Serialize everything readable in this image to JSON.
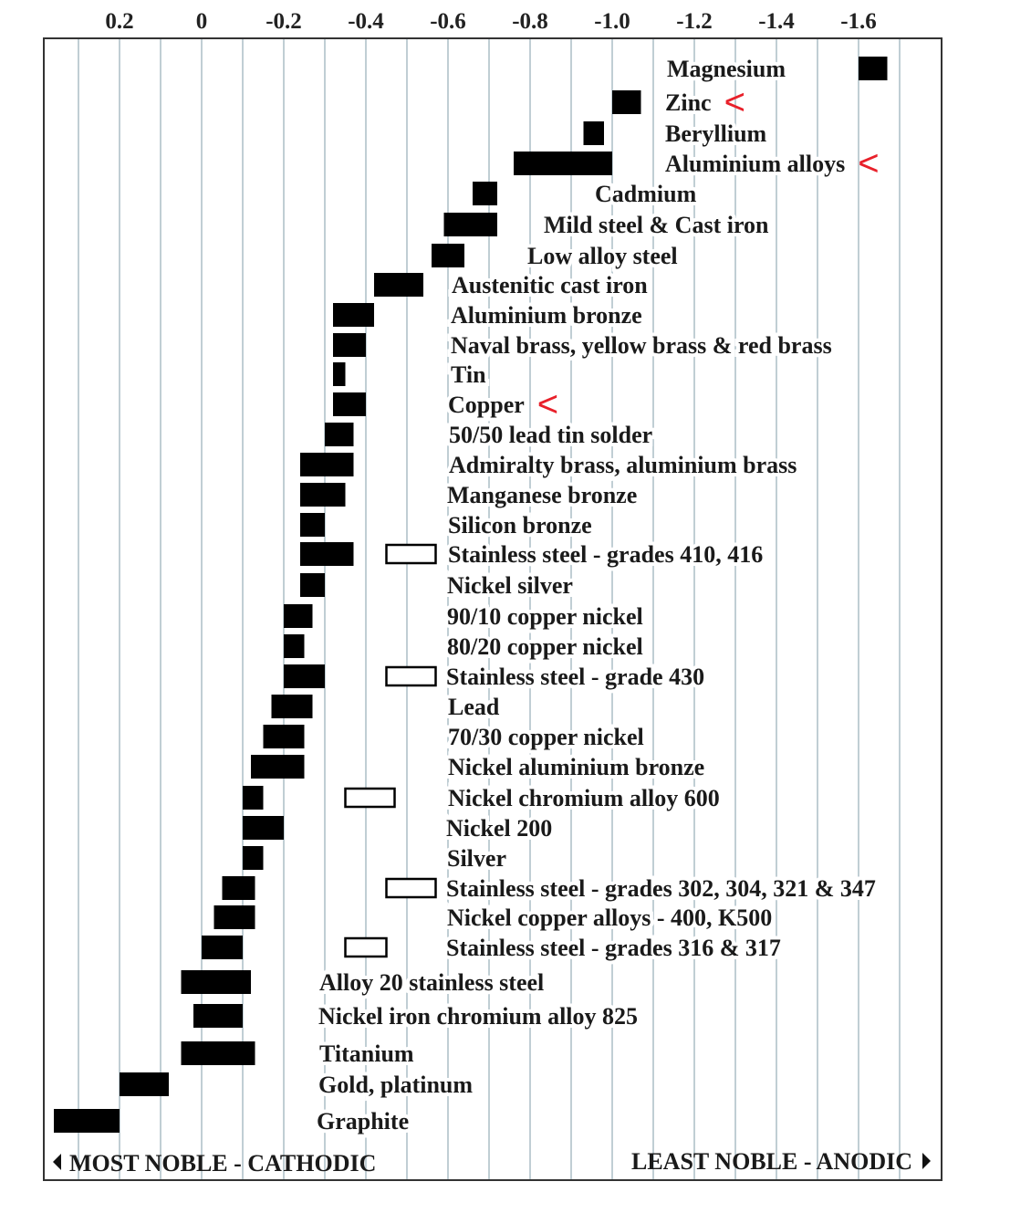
{
  "chart_data": {
    "type": "bar",
    "subtype": "floating-range",
    "x_axis": {
      "position": "top",
      "ticks": [
        "0.2",
        "0",
        "-0.2",
        "-0.4",
        "-0.6",
        "-0.8",
        "-1.0",
        "-1.2",
        "-1.4",
        "-1.6"
      ],
      "range": [
        0.38,
        -1.78
      ],
      "gridlines_every": 0.1,
      "grid": true,
      "grid_color": "#9fb3bd"
    },
    "footer": {
      "left": "MOST NOBLE - CATHODIC",
      "right": "LEAST NOBLE - ANODIC"
    },
    "colors": {
      "filled_bar": "#000000",
      "open_bar": "#ffffff",
      "marker": "#e8202a"
    },
    "marker_symbol": "<",
    "series": [
      {
        "name": "Magnesium",
        "range": [
          -1.6,
          -1.67
        ],
        "marked": false
      },
      {
        "name": "Zinc",
        "range": [
          -1.0,
          -1.07
        ],
        "marked": true
      },
      {
        "name": "Beryllium",
        "range": [
          -0.93,
          -0.98
        ],
        "marked": false
      },
      {
        "name": "Aluminium alloys",
        "range": [
          -0.76,
          -1.0
        ],
        "marked": true
      },
      {
        "name": "Cadmium",
        "range": [
          -0.66,
          -0.72
        ],
        "marked": false
      },
      {
        "name": "Mild steel & Cast iron",
        "range": [
          -0.59,
          -0.72
        ],
        "marked": false
      },
      {
        "name": "Low alloy steel",
        "range": [
          -0.56,
          -0.64
        ],
        "marked": false
      },
      {
        "name": "Austenitic cast iron",
        "range": [
          -0.42,
          -0.54
        ],
        "marked": false
      },
      {
        "name": "Aluminium bronze",
        "range": [
          -0.32,
          -0.42
        ],
        "marked": false
      },
      {
        "name": "Naval brass, yellow brass & red brass",
        "range": [
          -0.32,
          -0.4
        ],
        "marked": false
      },
      {
        "name": "Tin",
        "range": [
          -0.32,
          -0.35
        ],
        "marked": false
      },
      {
        "name": "Copper",
        "range": [
          -0.32,
          -0.4
        ],
        "marked": true
      },
      {
        "name": "50/50 lead tin solder",
        "range": [
          -0.3,
          -0.37
        ],
        "marked": false
      },
      {
        "name": "Admiralty brass, aluminium brass",
        "range": [
          -0.24,
          -0.37
        ],
        "marked": false
      },
      {
        "name": "Manganese bronze",
        "range": [
          -0.24,
          -0.35
        ],
        "marked": false
      },
      {
        "name": "Silicon bronze",
        "range": [
          -0.24,
          -0.3
        ],
        "marked": false
      },
      {
        "name": "Stainless steel  - grades 410, 416",
        "range": [
          -0.24,
          -0.37
        ],
        "open_range": [
          -0.45,
          -0.57
        ],
        "marked": false
      },
      {
        "name": "Nickel silver",
        "range": [
          -0.24,
          -0.3
        ],
        "marked": false
      },
      {
        "name": "90/10 copper nickel",
        "range": [
          -0.2,
          -0.27
        ],
        "marked": false
      },
      {
        "name": "80/20 copper nickel",
        "range": [
          -0.2,
          -0.25
        ],
        "marked": false
      },
      {
        "name": "Stainless steel  - grade 430",
        "range": [
          -0.2,
          -0.3
        ],
        "open_range": [
          -0.45,
          -0.57
        ],
        "marked": false
      },
      {
        "name": "Lead",
        "range": [
          -0.17,
          -0.27
        ],
        "marked": false
      },
      {
        "name": "70/30 copper nickel",
        "range": [
          -0.15,
          -0.25
        ],
        "marked": false
      },
      {
        "name": "Nickel aluminium bronze",
        "range": [
          -0.12,
          -0.25
        ],
        "marked": false
      },
      {
        "name": "Nickel chromium alloy 600",
        "range": [
          -0.1,
          -0.15
        ],
        "open_range": [
          -0.35,
          -0.47
        ],
        "marked": false
      },
      {
        "name": "Nickel 200",
        "range": [
          -0.1,
          -0.2
        ],
        "marked": false
      },
      {
        "name": "Silver",
        "range": [
          -0.1,
          -0.15
        ],
        "marked": false
      },
      {
        "name": "Stainless steel - grades 302, 304, 321 & 347",
        "range": [
          -0.05,
          -0.13
        ],
        "open_range": [
          -0.45,
          -0.57
        ],
        "marked": false
      },
      {
        "name": "Nickel copper  alloys - 400, K500",
        "range": [
          -0.03,
          -0.13
        ],
        "marked": false
      },
      {
        "name": "Stainless steel - grades  316 & 317",
        "range": [
          0.0,
          -0.1
        ],
        "open_range": [
          -0.35,
          -0.45
        ],
        "marked": false
      },
      {
        "name": "Alloy 20 stainless steel",
        "range": [
          0.05,
          -0.12
        ],
        "marked": false
      },
      {
        "name": "Nickel iron chromium alloy  825",
        "range": [
          0.02,
          -0.1
        ],
        "marked": false
      },
      {
        "name": "Titanium",
        "range": [
          0.05,
          -0.13
        ],
        "marked": false
      },
      {
        "name": "Gold, platinum",
        "range": [
          0.2,
          0.08
        ],
        "marked": false
      },
      {
        "name": "Graphite",
        "range": [
          0.36,
          0.2
        ],
        "marked": false
      }
    ]
  }
}
